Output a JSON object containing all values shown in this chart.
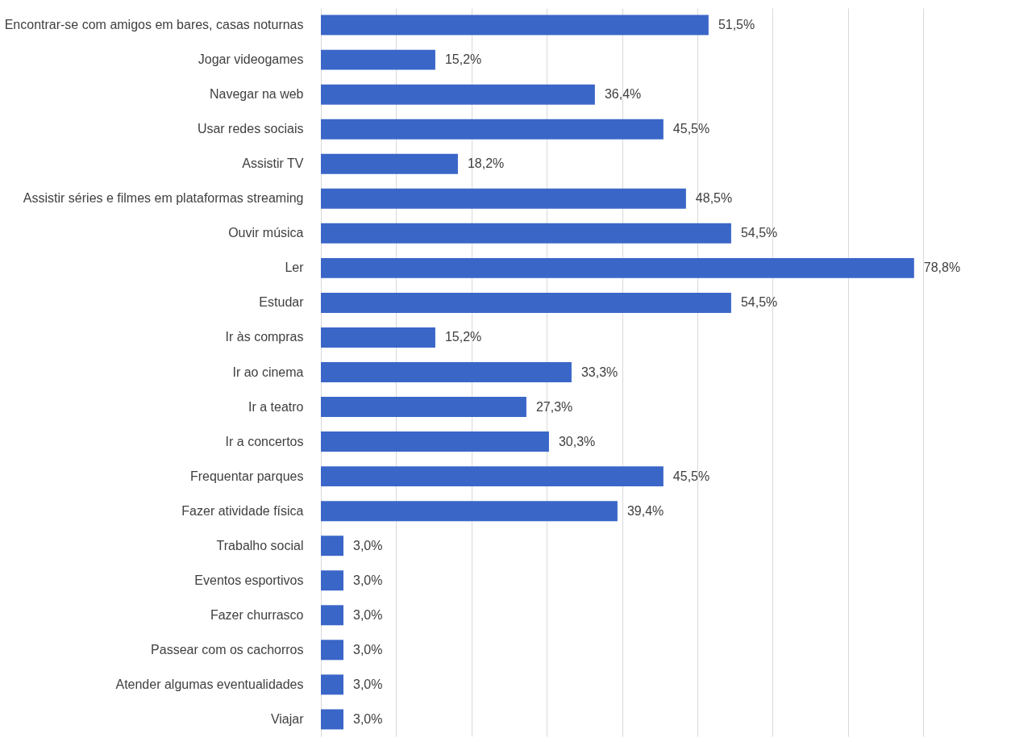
{
  "chart_data": {
    "type": "bar",
    "orientation": "horizontal",
    "categories": [
      "Encontrar-se com amigos em bares, casas noturnas",
      "Jogar videogames",
      "Navegar na web",
      "Usar redes sociais",
      "Assistir TV",
      "Assistir séries e filmes em plataformas streaming",
      "Ouvir música",
      "Ler",
      "Estudar",
      "Ir às compras",
      "Ir ao cinema",
      "Ir a teatro",
      "Ir a concertos",
      "Frequentar parques",
      "Fazer atividade física",
      "Trabalho social",
      "Eventos esportivos",
      "Fazer churrasco",
      "Passear com os cachorros",
      "Atender algumas eventualidades",
      "Viajar"
    ],
    "values": [
      51.5,
      15.2,
      36.4,
      45.5,
      18.2,
      48.5,
      54.5,
      78.8,
      54.5,
      15.2,
      33.3,
      27.3,
      30.3,
      45.5,
      39.4,
      3.0,
      3.0,
      3.0,
      3.0,
      3.0,
      3.0
    ],
    "value_labels": [
      "51,5%",
      "15,2%",
      "36,4%",
      "45,5%",
      "18,2%",
      "48,5%",
      "54,5%",
      "78,8%",
      "54,5%",
      "15,2%",
      "33,3%",
      "27,3%",
      "30,3%",
      "45,5%",
      "39,4%",
      "3,0%",
      "3,0%",
      "3,0%",
      "3,0%",
      "3,0%",
      "3,0%"
    ],
    "color": "#3a66c8",
    "xlim": [
      0,
      80
    ],
    "xticks": [
      {
        "value": 0,
        "label": null
      },
      {
        "value": 10,
        "label": null
      },
      {
        "value": 20,
        "label": null
      },
      {
        "value": 30,
        "label": null
      },
      {
        "value": 40,
        "label": null
      },
      {
        "value": 50,
        "label": null
      },
      {
        "value": 60,
        "label": null
      },
      {
        "value": 70,
        "label": null
      },
      {
        "value": 80,
        "label": null
      }
    ],
    "grid": "x",
    "tick_labels": "y"
  }
}
